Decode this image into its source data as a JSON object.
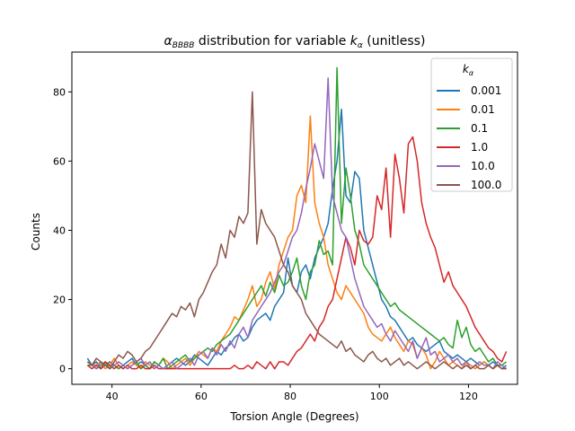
{
  "chart_data": {
    "type": "line",
    "title_prefix": "α",
    "title_sub": "BBBB",
    "title_mid": " distribution for variable ",
    "title_k": "k",
    "title_ksub": "α",
    "title_suffix": " (unitless)",
    "xlabel": "Torsion Angle (Degrees)",
    "ylabel": "Counts",
    "xlim": [
      31,
      131
    ],
    "ylim": [
      -4.5,
      91.5
    ],
    "xticks": [
      40,
      60,
      80,
      100,
      120
    ],
    "yticks": [
      0,
      20,
      40,
      60,
      80
    ],
    "grid": false,
    "legend": {
      "position": "top-right",
      "title_main": "k",
      "title_sub": "α"
    },
    "x_start": 34.5,
    "x_step": 1.0,
    "series": [
      {
        "name": "0.001",
        "color": "#1f77b4",
        "values": [
          3,
          1,
          2,
          0,
          1,
          2,
          1,
          0,
          1,
          2,
          3,
          1,
          2,
          1,
          0,
          2,
          1,
          0,
          1,
          2,
          3,
          2,
          1,
          2,
          4,
          3,
          2,
          1,
          3,
          5,
          4,
          6,
          7,
          9,
          10,
          8,
          9,
          12,
          14,
          15,
          16,
          14,
          18,
          20,
          22,
          32,
          24,
          22,
          28,
          30,
          26,
          32,
          35,
          38,
          42,
          52,
          60,
          75,
          50,
          48,
          57,
          55,
          40,
          35,
          30,
          25,
          20,
          18,
          15,
          14,
          12,
          10,
          8,
          9,
          7,
          6,
          5,
          6,
          7,
          8,
          5,
          4,
          3,
          4,
          3,
          2,
          3,
          2,
          1,
          2,
          1,
          2,
          1,
          0,
          1
        ]
      },
      {
        "name": "0.01",
        "color": "#ff7f0e",
        "values": [
          2,
          1,
          1,
          2,
          0,
          1,
          3,
          1,
          0,
          1,
          2,
          1,
          0,
          2,
          1,
          0,
          1,
          3,
          2,
          0,
          1,
          2,
          3,
          1,
          3,
          5,
          4,
          3,
          6,
          5,
          8,
          10,
          12,
          15,
          14,
          17,
          20,
          24,
          18,
          20,
          25,
          28,
          23,
          30,
          34,
          38,
          40,
          50,
          53,
          48,
          73,
          48,
          42,
          38,
          30,
          26,
          22,
          20,
          24,
          22,
          20,
          18,
          16,
          12,
          10,
          9,
          8,
          10,
          12,
          9,
          7,
          5,
          8,
          7,
          3,
          6,
          4,
          0,
          2,
          5,
          3,
          1,
          2,
          1,
          0,
          2,
          1,
          0,
          1,
          2,
          1,
          0,
          1,
          0,
          0
        ]
      },
      {
        "name": "0.1",
        "color": "#2ca02c",
        "values": [
          1,
          1,
          0,
          1,
          2,
          0,
          1,
          0,
          1,
          0,
          1,
          2,
          0,
          1,
          0,
          2,
          1,
          3,
          0,
          1,
          2,
          3,
          4,
          2,
          3,
          4,
          5,
          6,
          5,
          7,
          8,
          9,
          10,
          12,
          14,
          16,
          18,
          20,
          22,
          24,
          21,
          25,
          22,
          27,
          24,
          25,
          28,
          32,
          24,
          20,
          28,
          30,
          37,
          33,
          34,
          30,
          87,
          42,
          58,
          50,
          40,
          36,
          30,
          28,
          26,
          24,
          22,
          20,
          18,
          19,
          17,
          16,
          15,
          14,
          13,
          12,
          11,
          10,
          9,
          8,
          9,
          7,
          6,
          14,
          9,
          12,
          7,
          5,
          6,
          4,
          2,
          3,
          1,
          1,
          2
        ]
      },
      {
        "name": "1.0",
        "color": "#d62728",
        "values": [
          1,
          0,
          1,
          0,
          2,
          1,
          0,
          1,
          0,
          1,
          0,
          0,
          1,
          0,
          0,
          1,
          0,
          0,
          0,
          0,
          0,
          0,
          0,
          0,
          0,
          0,
          0,
          0,
          0,
          0,
          0,
          0,
          0,
          1,
          0,
          0,
          1,
          0,
          2,
          1,
          0,
          2,
          0,
          2,
          2,
          1,
          3,
          5,
          6,
          8,
          10,
          8,
          12,
          14,
          18,
          20,
          26,
          32,
          38,
          35,
          30,
          40,
          37,
          36,
          38,
          50,
          46,
          58,
          38,
          62,
          55,
          45,
          65,
          67,
          60,
          48,
          42,
          38,
          35,
          30,
          25,
          28,
          24,
          22,
          20,
          18,
          15,
          12,
          10,
          8,
          6,
          5,
          3,
          2,
          5
        ]
      },
      {
        "name": "10.0",
        "color": "#9467bd",
        "values": [
          2,
          1,
          0,
          2,
          1,
          0,
          1,
          2,
          1,
          0,
          1,
          2,
          3,
          1,
          2,
          0,
          1,
          0,
          1,
          2,
          0,
          1,
          2,
          3,
          1,
          4,
          5,
          3,
          6,
          4,
          7,
          5,
          8,
          6,
          10,
          12,
          9,
          14,
          16,
          18,
          20,
          22,
          25,
          28,
          30,
          34,
          38,
          40,
          45,
          52,
          58,
          65,
          60,
          55,
          84,
          50,
          45,
          40,
          38,
          32,
          26,
          22,
          18,
          16,
          14,
          12,
          13,
          10,
          8,
          11,
          9,
          7,
          5,
          8,
          3,
          6,
          9,
          4,
          5,
          2,
          3,
          4,
          2,
          3,
          1,
          2,
          0,
          1,
          2,
          1,
          1,
          0,
          2,
          1,
          0
        ]
      },
      {
        "name": "100.0",
        "color": "#8c564b",
        "values": [
          2,
          1,
          3,
          2,
          1,
          0,
          2,
          4,
          3,
          5,
          4,
          2,
          3,
          5,
          6,
          8,
          10,
          12,
          14,
          16,
          15,
          18,
          17,
          19,
          15,
          20,
          22,
          25,
          28,
          30,
          36,
          32,
          40,
          38,
          44,
          42,
          45,
          80,
          36,
          46,
          42,
          40,
          38,
          34,
          30,
          28,
          24,
          22,
          20,
          16,
          14,
          12,
          10,
          9,
          8,
          7,
          6,
          8,
          5,
          6,
          4,
          3,
          2,
          4,
          5,
          3,
          2,
          3,
          1,
          2,
          3,
          1,
          2,
          1,
          0,
          1,
          2,
          1,
          0,
          1,
          2,
          1,
          0,
          1,
          0,
          1,
          0,
          1,
          0,
          0,
          1,
          0,
          1,
          0,
          0
        ]
      }
    ]
  }
}
